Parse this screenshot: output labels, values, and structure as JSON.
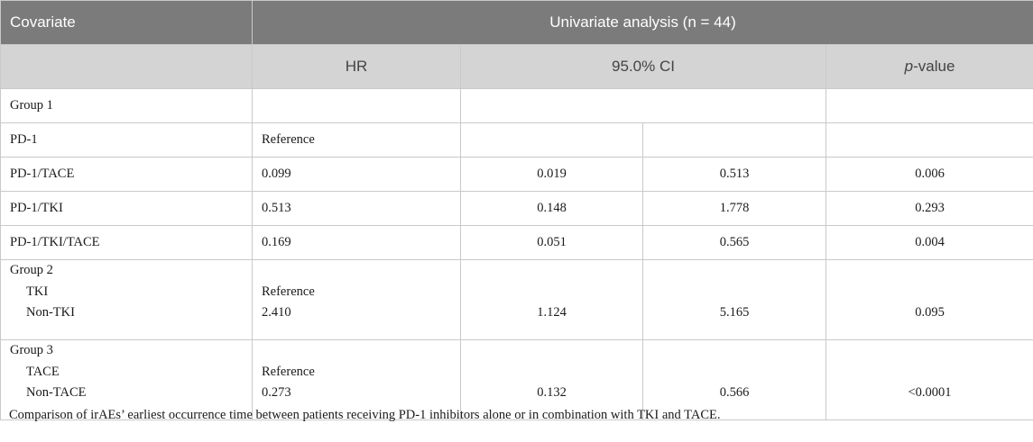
{
  "header": {
    "covariate": "Covariate",
    "univariate": "Univariate analysis (n = 44)",
    "hr": "HR",
    "ci": "95.0% CI",
    "p_italic": "p",
    "p_rest": "-value"
  },
  "rows": {
    "group1": {
      "label": "Group 1"
    },
    "pd1": {
      "label": "PD-1",
      "hr": "Reference"
    },
    "pd1_tace": {
      "label": "PD-1/TACE",
      "hr": "0.099",
      "ci_low": "0.019",
      "ci_high": "0.513",
      "p": "0.006"
    },
    "pd1_tki": {
      "label": "PD-1/TKI",
      "hr": "0.513",
      "ci_low": "0.148",
      "ci_high": "1.778",
      "p": "0.293"
    },
    "pd1_tki_tace": {
      "label": "PD-1/TKI/TACE",
      "hr": "0.169",
      "ci_low": "0.051",
      "ci_high": "0.565",
      "p": "0.004"
    },
    "group2": {
      "label": "Group 2",
      "sub1": "TKI",
      "sub1_hr": "Reference",
      "sub2": "Non-TKI",
      "sub2_hr": "2.410",
      "ci_low": "1.124",
      "ci_high": "5.165",
      "p": "0.095"
    },
    "group3": {
      "label": "Group 3",
      "sub1": "TACE",
      "sub1_hr": "Reference",
      "sub2": "Non-TACE",
      "sub2_hr": "0.273",
      "ci_low": "0.132",
      "ci_high": "0.566",
      "p": "<0.0001"
    }
  },
  "caption": "Comparison of irAEs’ earliest occurrence time between patients receiving PD-1 inhibitors alone or in combination with TKI and TACE."
}
